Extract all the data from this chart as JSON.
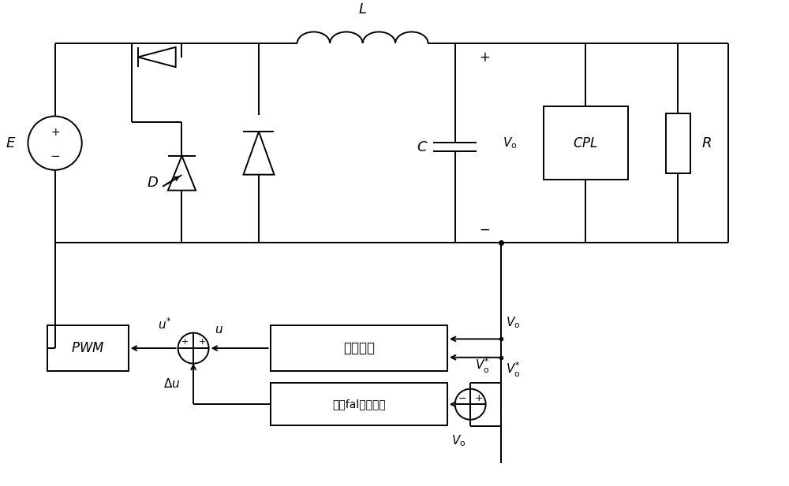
{
  "figsize": [
    10.0,
    6.17
  ],
  "dpi": 100,
  "bg_color": "#ffffff",
  "lc": "#000000",
  "lw": 1.4,
  "font_size_label": 13,
  "font_size_text": 12,
  "font_size_small": 11
}
